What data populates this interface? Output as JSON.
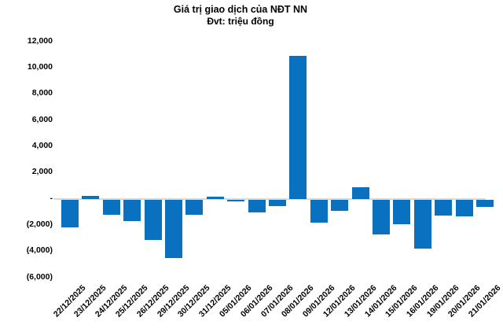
{
  "chart_data": {
    "type": "bar",
    "title": "Giá trị giao dịch của NĐT NN",
    "subtitle": "Đvt: triệu đồng",
    "unit_label": "triệu đồng",
    "categories": [
      "22/12/2025",
      "23/12/2025",
      "24/12/2025",
      "25/12/2025",
      "26/12/2025",
      "29/12/2025",
      "30/12/2025",
      "31/12/2025",
      "05/01/2026",
      "06/01/2026",
      "07/01/2026",
      "08/01/2026",
      "09/01/2026",
      "12/01/2026",
      "13/01/2026",
      "14/01/2026",
      "15/01/2026",
      "16/01/2026",
      "19/01/2026",
      "20/01/2026",
      "21/01/2026"
    ],
    "values": [
      -2150,
      250,
      -1150,
      -1650,
      -3100,
      -4500,
      -1150,
      200,
      -150,
      -1000,
      -500,
      10950,
      -1750,
      -900,
      950,
      -2700,
      -1900,
      -3750,
      -1250,
      -1300,
      -600
    ],
    "y_tick_labels": [
      "12,000",
      "10,000",
      "8,000",
      "6,000",
      "4,000",
      "2,000",
      "-",
      "(2,000)",
      "(4,000)",
      "(6,000)"
    ],
    "y_tick_values": [
      12000,
      10000,
      8000,
      6000,
      4000,
      2000,
      0,
      -2000,
      -4000,
      -6000
    ],
    "ylim": [
      -6000,
      12000
    ],
    "y_tick_step": 2000,
    "xlabel": "",
    "ylabel": "",
    "grid": "off",
    "legend": "none",
    "bar_color": "#0a71c0",
    "zero_line_color": "#d9d9d9"
  }
}
